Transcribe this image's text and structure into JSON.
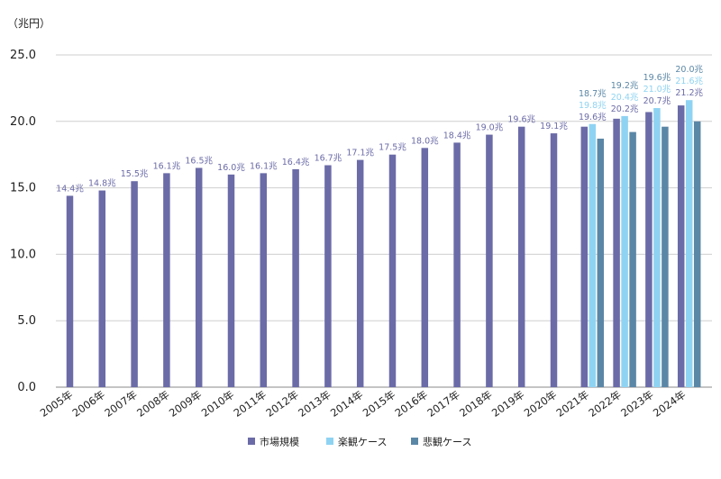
{
  "chart_data": {
    "type": "bar",
    "unit_label": "（兆円）",
    "ylim": [
      0,
      25
    ],
    "yticks": [
      "0.0",
      "5.0",
      "10.0",
      "15.0",
      "20.0",
      "25.0"
    ],
    "grid": true,
    "legend_position": "bottom-center",
    "categories": [
      "2005年",
      "2006年",
      "2007年",
      "2008年",
      "2009年",
      "2010年",
      "2011年",
      "2012年",
      "2013年",
      "2014年",
      "2015年",
      "2016年",
      "2017年",
      "2018年",
      "2019年",
      "2020年",
      "2021年",
      "2022年",
      "2023年",
      "2024年"
    ],
    "series": [
      {
        "name": "市場規模",
        "color": "#6b6ba8",
        "values": [
          14.4,
          14.8,
          15.5,
          16.1,
          16.5,
          16.0,
          16.1,
          16.4,
          16.7,
          17.1,
          17.5,
          18.0,
          18.4,
          19.0,
          19.6,
          19.1,
          19.6,
          20.2,
          20.7,
          21.2
        ],
        "labels": [
          "14.4兆",
          "14.8兆",
          "15.5兆",
          "16.1兆",
          "16.5兆",
          "16.0兆",
          "16.1兆",
          "16.4兆",
          "16.7兆",
          "17.1兆",
          "17.5兆",
          "18.0兆",
          "18.4兆",
          "19.0兆",
          "19.6兆",
          "19.1兆",
          "19.6兆",
          "20.2兆",
          "20.7兆",
          "21.2兆"
        ]
      },
      {
        "name": "楽観ケース",
        "color": "#8fd3f2",
        "values": [
          null,
          null,
          null,
          null,
          null,
          null,
          null,
          null,
          null,
          null,
          null,
          null,
          null,
          null,
          null,
          null,
          19.8,
          20.4,
          21.0,
          21.6
        ],
        "labels": [
          null,
          null,
          null,
          null,
          null,
          null,
          null,
          null,
          null,
          null,
          null,
          null,
          null,
          null,
          null,
          null,
          "19.8兆",
          "20.4兆",
          "21.0兆",
          "21.6兆"
        ]
      },
      {
        "name": "悲観ケース",
        "color": "#5b87a6",
        "values": [
          null,
          null,
          null,
          null,
          null,
          null,
          null,
          null,
          null,
          null,
          null,
          null,
          null,
          null,
          null,
          null,
          18.7,
          19.2,
          19.6,
          20.0
        ],
        "labels": [
          null,
          null,
          null,
          null,
          null,
          null,
          null,
          null,
          null,
          null,
          null,
          null,
          null,
          null,
          null,
          null,
          "18.7兆",
          "19.2兆",
          "19.6兆",
          "20.0兆"
        ]
      }
    ]
  }
}
